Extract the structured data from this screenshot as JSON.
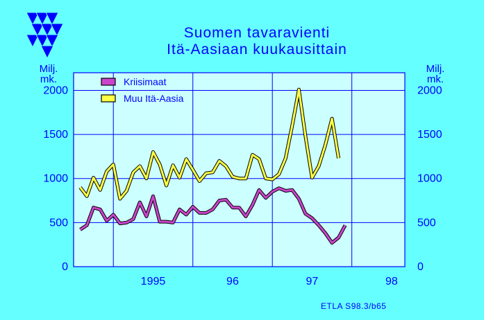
{
  "title_line1": "Suomen tavaravienti",
  "title_line2": "Itä-Aasiaan kuukausittain",
  "unit_left": {
    "line1": "Milj.",
    "line2": "mk."
  },
  "unit_right": {
    "line1": "Milj.",
    "line2": "mk."
  },
  "source": "ETLA S98.3/b65",
  "colors": {
    "background": "#66ffff",
    "plot_background": "#ccffff",
    "text": "#0000ff",
    "grid": "#0000ff",
    "krisimaat": "#cc44cc",
    "muu": "#ffff44"
  },
  "chart_data": {
    "type": "line",
    "x_start": "1994-07",
    "x_end": "1998-09",
    "x_tick_labels": [
      "1995",
      "96",
      "97",
      "98"
    ],
    "ylim": [
      0,
      2200
    ],
    "y_ticks": [
      0,
      500,
      1000,
      1500,
      2000
    ],
    "grid": true,
    "legend_position": "top-left",
    "series": [
      {
        "name": "Kriisimaat",
        "color": "#cc44cc",
        "start": "1994-08",
        "values": [
          420,
          470,
          670,
          650,
          520,
          590,
          490,
          500,
          540,
          730,
          570,
          800,
          510,
          510,
          500,
          650,
          590,
          680,
          610,
          610,
          650,
          750,
          760,
          670,
          670,
          570,
          700,
          870,
          780,
          850,
          890,
          860,
          870,
          770,
          600,
          550,
          470,
          380,
          270,
          330,
          470
        ]
      },
      {
        "name": "Muu Itä-Aasia",
        "color": "#ffff44",
        "start": "1994-08",
        "values": [
          900,
          800,
          1010,
          870,
          1080,
          1160,
          770,
          860,
          1070,
          1140,
          1000,
          1300,
          1160,
          920,
          1150,
          1010,
          1220,
          1100,
          970,
          1060,
          1070,
          1200,
          1140,
          1020,
          1000,
          1000,
          1270,
          1220,
          1000,
          990,
          1050,
          1230,
          1600,
          2010,
          1480,
          1010,
          1140,
          1380,
          1680,
          1230
        ]
      }
    ]
  }
}
